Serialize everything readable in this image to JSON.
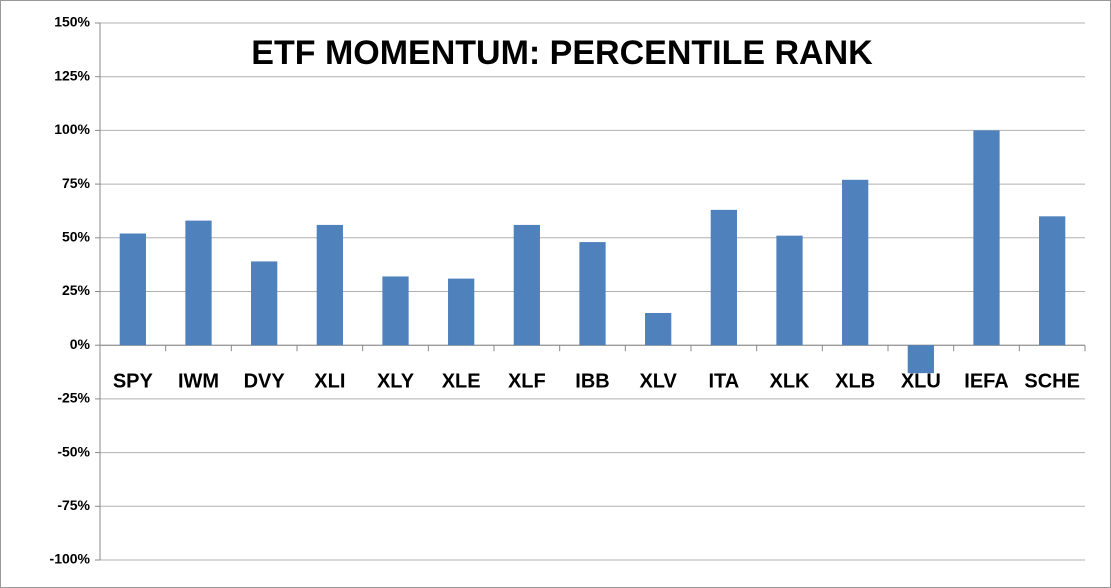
{
  "chart_data": {
    "type": "bar",
    "title": "ETF MOMENTUM: PERCENTILE RANK",
    "categories": [
      "SPY",
      "IWM",
      "DVY",
      "XLI",
      "XLY",
      "XLE",
      "XLF",
      "IBB",
      "XLV",
      "ITA",
      "XLK",
      "XLB",
      "XLU",
      "IEFA",
      "SCHE"
    ],
    "values": [
      52,
      58,
      39,
      56,
      32,
      31,
      56,
      48,
      15,
      63,
      51,
      77,
      -13,
      100,
      60
    ],
    "color": "#4f81bd",
    "ylim": [
      -100,
      150
    ],
    "yticks": [
      {
        "value": -100,
        "label": "-100%"
      },
      {
        "value": -75,
        "label": "-75%"
      },
      {
        "value": -50,
        "label": "-50%"
      },
      {
        "value": -25,
        "label": "-25%"
      },
      {
        "value": 0,
        "label": "0%"
      },
      {
        "value": 25,
        "label": "25%"
      },
      {
        "value": 50,
        "label": "50%"
      },
      {
        "value": 75,
        "label": "75%"
      },
      {
        "value": 100,
        "label": "100%"
      },
      {
        "value": 125,
        "label": "125%"
      },
      {
        "value": 150,
        "label": "150%"
      }
    ],
    "grid": true
  }
}
